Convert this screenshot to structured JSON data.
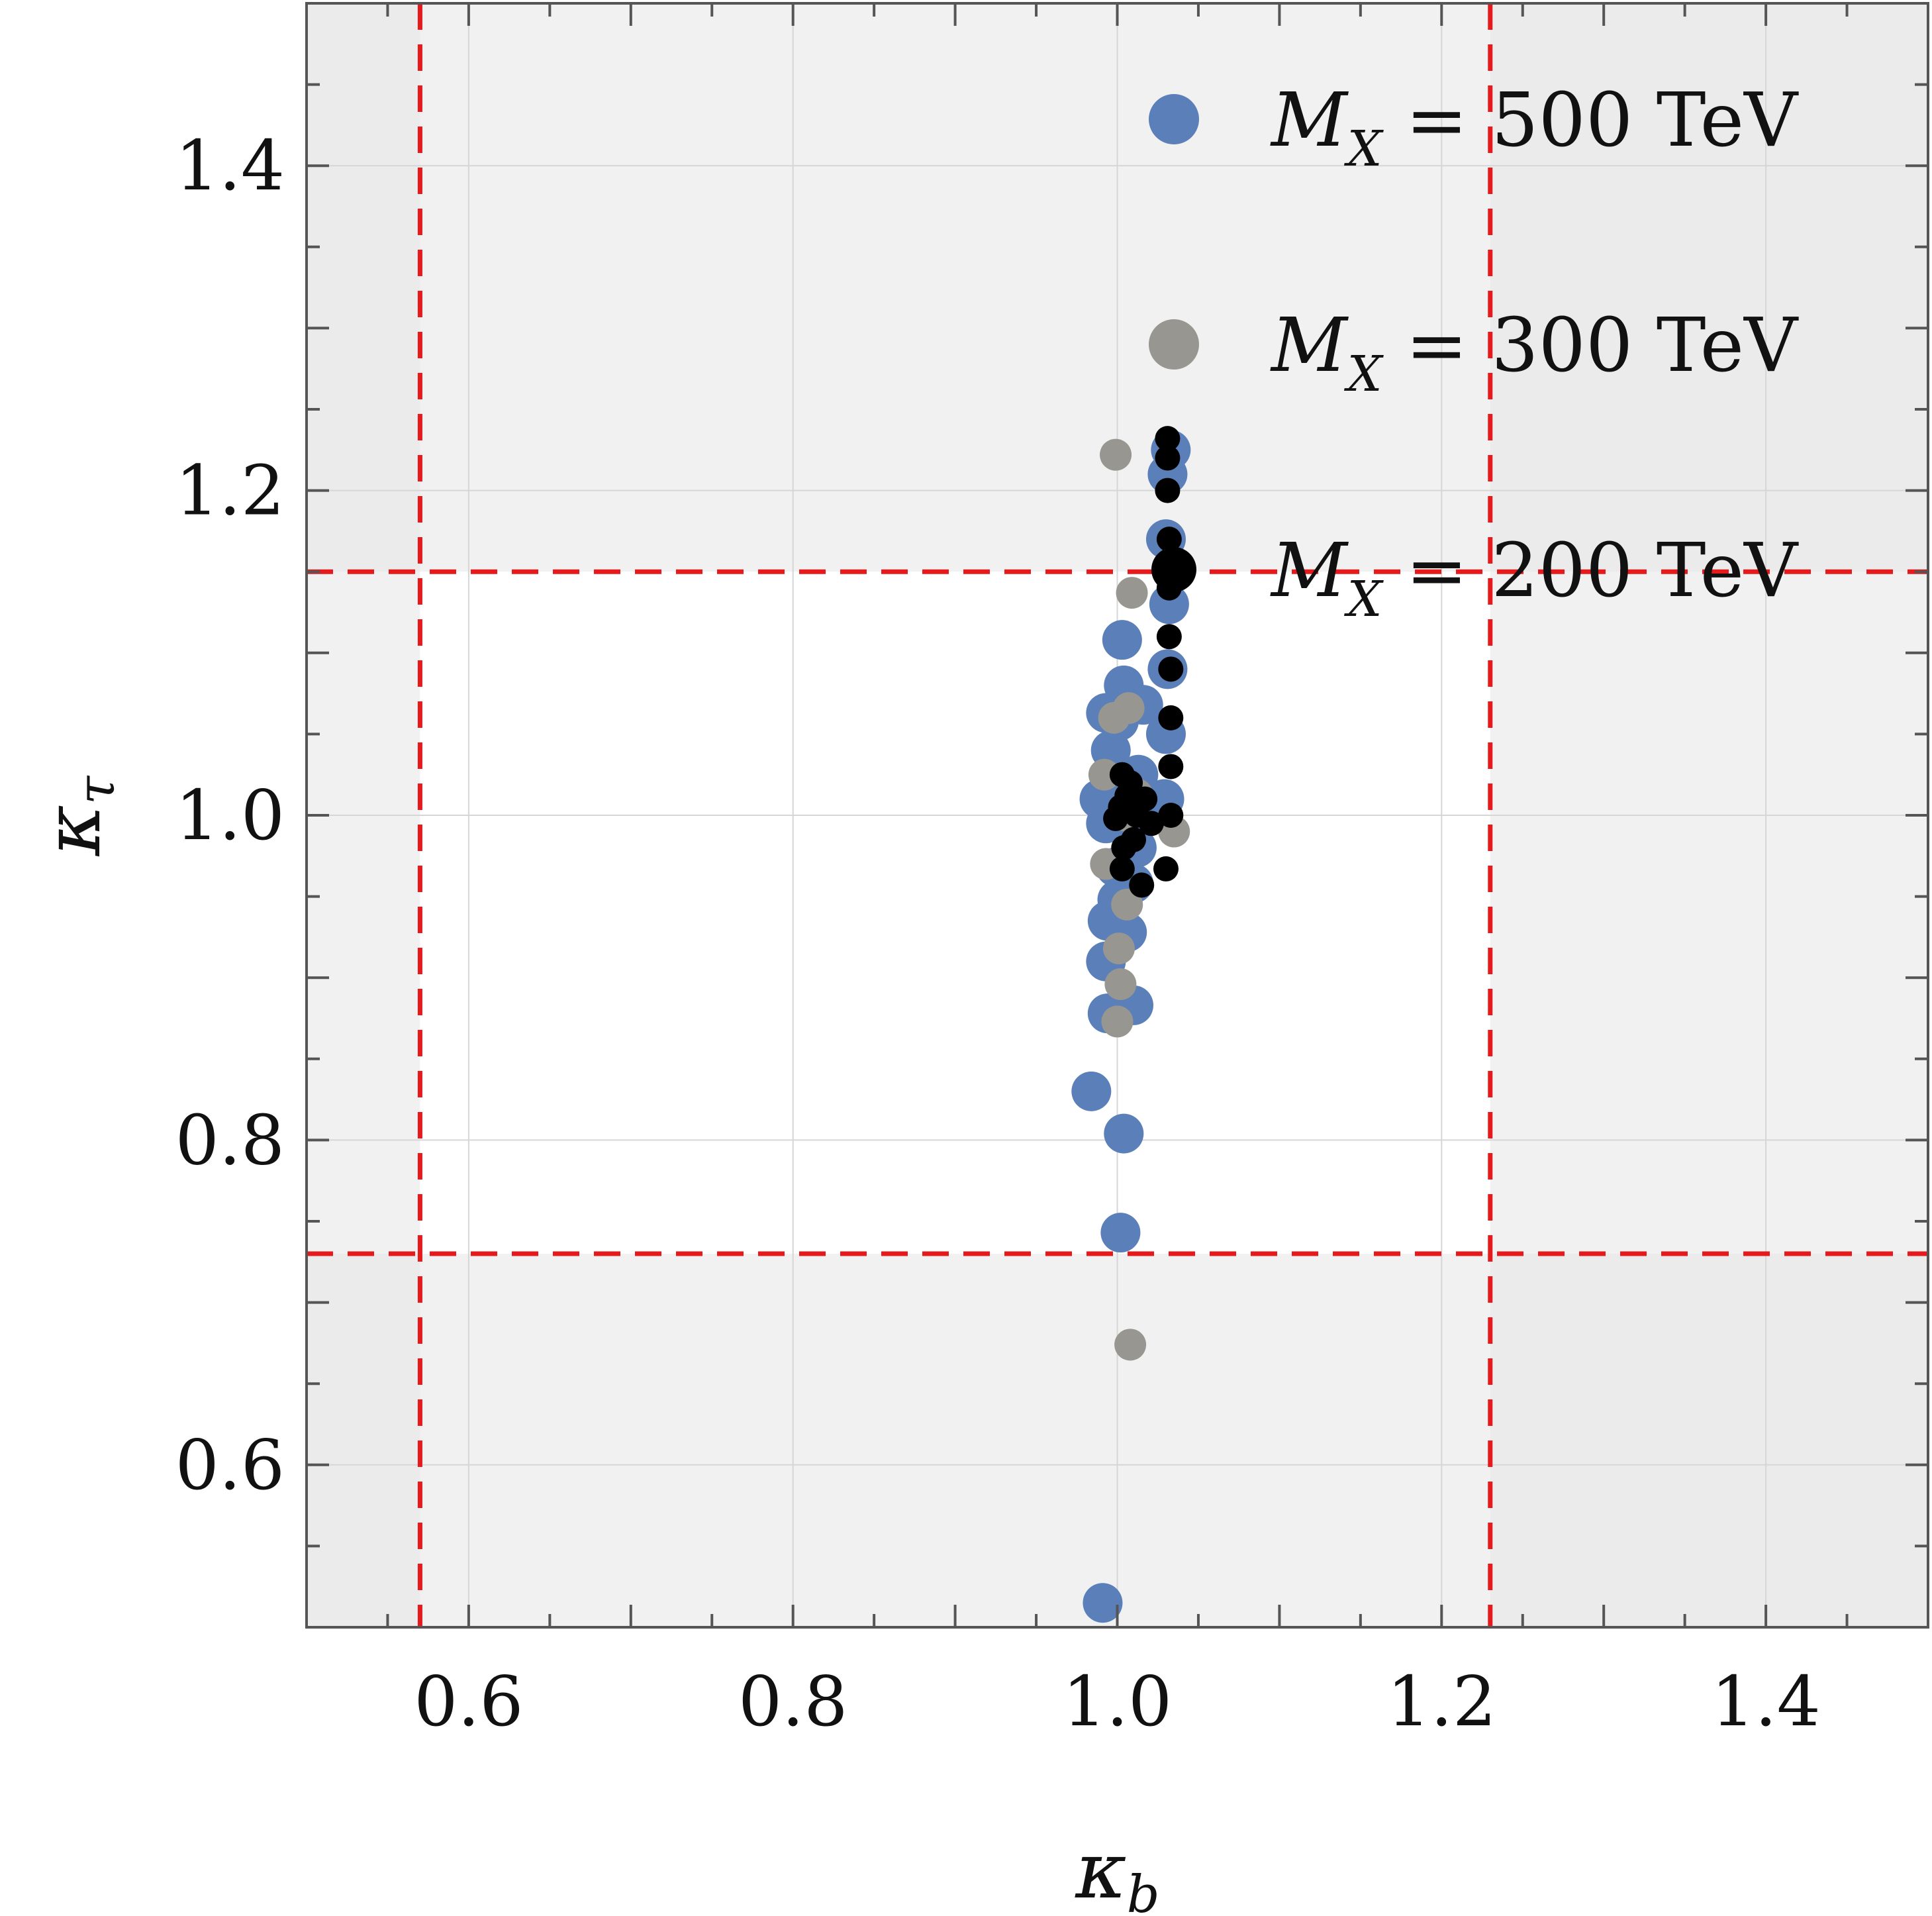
{
  "chart_data": {
    "type": "scatter",
    "xlabel": {
      "main": "κ",
      "sub": "b"
    },
    "ylabel": {
      "main": "κ",
      "sub": "τ"
    },
    "xlim": [
      0.5,
      1.5
    ],
    "ylim": [
      0.5,
      1.5
    ],
    "x_ticks": [
      "0.6",
      "0.8",
      "1.0",
      "1.2",
      "1.4"
    ],
    "y_ticks": [
      "0.6",
      "0.8",
      "1.0",
      "1.2",
      "1.4"
    ],
    "grid": true,
    "legend_position": "top-right",
    "allowed_region": {
      "kappa_b": [
        0.57,
        1.23
      ],
      "kappa_tau": [
        0.73,
        1.15
      ]
    },
    "colors": {
      "excluded_region": "#f1f1f1",
      "excluded_corner": "#ebebeb",
      "allowed_region": "#ffffff",
      "bounds_line": "#e41a1c",
      "grid": "#d6d6d6",
      "frame": "#555555"
    },
    "series": [
      {
        "name_parts": [
          "M",
          "X",
          " = 500 TeV"
        ],
        "color": "#5b7fb9",
        "points": [
          [
            0.991,
            0.515
          ],
          [
            1.002,
            0.743
          ],
          [
            1.004,
            0.804
          ],
          [
            0.984,
            0.83
          ],
          [
            1.01,
            0.883
          ],
          [
            0.994,
            0.878
          ],
          [
            0.993,
            0.91
          ],
          [
            1.006,
            0.928
          ],
          [
            0.994,
            0.935
          ],
          [
            1.0,
            0.948
          ],
          [
            1.01,
            0.958
          ],
          [
            0.999,
            0.968
          ],
          [
            1.012,
            0.98
          ],
          [
            0.993,
            0.995
          ],
          [
            0.998,
            1.0
          ],
          [
            1.008,
            1.003
          ],
          [
            0.989,
            1.01
          ],
          [
            1.003,
            1.02
          ],
          [
            1.013,
            1.025
          ],
          [
            0.996,
            1.04
          ],
          [
            0.993,
            1.063
          ],
          [
            1.001,
            1.058
          ],
          [
            1.016,
            1.068
          ],
          [
            1.004,
            1.08
          ],
          [
            1.003,
            1.108
          ],
          [
            1.029,
            1.01
          ],
          [
            1.03,
            1.05
          ],
          [
            1.031,
            1.09
          ],
          [
            1.032,
            1.13
          ],
          [
            1.03,
            1.17
          ],
          [
            1.031,
            1.21
          ],
          [
            1.033,
            1.225
          ]
        ]
      },
      {
        "name_parts": [
          "M",
          "X",
          " = 300 TeV"
        ],
        "color": "#979690",
        "points": [
          [
            1.008,
            0.674
          ],
          [
            1.0,
            0.873
          ],
          [
            1.002,
            0.896
          ],
          [
            1.001,
            0.918
          ],
          [
            1.006,
            0.945
          ],
          [
            0.993,
            0.97
          ],
          [
            1.004,
            1.0
          ],
          [
            0.992,
            1.025
          ],
          [
            0.998,
            1.06
          ],
          [
            1.007,
            1.066
          ],
          [
            1.009,
            1.137
          ],
          [
            0.999,
            1.222
          ],
          [
            1.035,
            0.99
          ],
          [
            1.012,
            1.013
          ]
        ]
      },
      {
        "name_parts": [
          "M",
          "X",
          " = 200 TeV"
        ],
        "color": "#000000",
        "points": [
          [
            1.003,
            0.967
          ],
          [
            1.015,
            0.957
          ],
          [
            1.03,
            0.967
          ],
          [
            1.004,
            0.98
          ],
          [
            1.01,
            0.985
          ],
          [
            0.999,
            0.998
          ],
          [
            1.002,
            1.005
          ],
          [
            1.006,
            1.012
          ],
          [
            1.008,
            1.02
          ],
          [
            1.003,
            1.025
          ],
          [
            1.012,
            1.0
          ],
          [
            1.017,
            1.01
          ],
          [
            1.021,
            0.995
          ],
          [
            1.033,
            1.0
          ],
          [
            1.033,
            1.03
          ],
          [
            1.033,
            1.06
          ],
          [
            1.033,
            1.09
          ],
          [
            1.032,
            1.11
          ],
          [
            1.032,
            1.14
          ],
          [
            1.032,
            1.17
          ],
          [
            1.031,
            1.2
          ],
          [
            1.031,
            1.22
          ],
          [
            1.031,
            1.232
          ]
        ]
      }
    ]
  }
}
